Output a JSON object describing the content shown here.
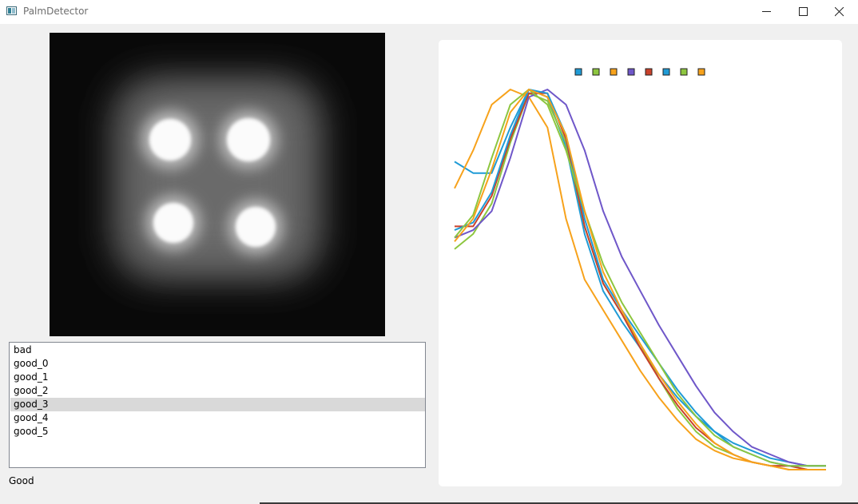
{
  "window": {
    "title": "PalmDetector"
  },
  "list": {
    "items": [
      "bad",
      "good_0",
      "good_1",
      "good_2",
      "good_3",
      "good_4",
      "good_5"
    ],
    "selected_index": 4
  },
  "status": {
    "text": "Good"
  },
  "chart_data": {
    "type": "line",
    "legend_position": "top",
    "grid": false,
    "axes_visible": false,
    "ylim": [
      0,
      1
    ],
    "x": [
      0,
      0.05,
      0.1,
      0.15,
      0.2,
      0.25,
      0.3,
      0.35,
      0.4,
      0.45,
      0.5,
      0.55,
      0.6,
      0.65,
      0.7,
      0.75,
      0.8,
      0.85,
      0.9,
      0.95,
      1
    ],
    "series": [
      {
        "color": "#1f9bd6",
        "values": [
          0.81,
          0.78,
          0.78,
          0.9,
          1.0,
          0.98,
          0.85,
          0.62,
          0.47,
          0.39,
          0.32,
          0.25,
          0.19,
          0.14,
          0.1,
          0.07,
          0.05,
          0.03,
          0.02,
          0.01,
          0.01
        ]
      },
      {
        "color": "#8dc63f",
        "values": [
          0.58,
          0.62,
          0.7,
          0.86,
          0.99,
          0.97,
          0.86,
          0.64,
          0.49,
          0.41,
          0.33,
          0.24,
          0.16,
          0.1,
          0.06,
          0.04,
          0.02,
          0.01,
          0.01,
          0.0,
          0.0
        ]
      },
      {
        "color": "#f7a21b",
        "values": [
          0.74,
          0.84,
          0.96,
          1.0,
          0.98,
          0.9,
          0.66,
          0.5,
          0.42,
          0.34,
          0.26,
          0.19,
          0.13,
          0.08,
          0.05,
          0.03,
          0.02,
          0.01,
          0.0,
          0.0,
          0.0
        ]
      },
      {
        "color": "#6f57c9",
        "values": [
          0.61,
          0.63,
          0.68,
          0.82,
          0.98,
          1.0,
          0.96,
          0.84,
          0.68,
          0.56,
          0.47,
          0.38,
          0.3,
          0.22,
          0.15,
          0.1,
          0.06,
          0.04,
          0.02,
          0.01,
          0.01
        ]
      },
      {
        "color": "#c9412b",
        "values": [
          0.64,
          0.64,
          0.72,
          0.87,
          0.99,
          0.99,
          0.87,
          0.64,
          0.49,
          0.41,
          0.32,
          0.24,
          0.17,
          0.11,
          0.07,
          0.04,
          0.02,
          0.01,
          0.01,
          0.0,
          0.0
        ]
      },
      {
        "color": "#1f9bd6",
        "values": [
          0.63,
          0.65,
          0.73,
          0.88,
          1.0,
          0.99,
          0.88,
          0.66,
          0.5,
          0.42,
          0.35,
          0.28,
          0.21,
          0.15,
          0.1,
          0.06,
          0.04,
          0.02,
          0.01,
          0.01,
          0.01
        ]
      },
      {
        "color": "#8dc63f",
        "values": [
          0.61,
          0.67,
          0.82,
          0.96,
          1.0,
          0.96,
          0.84,
          0.68,
          0.54,
          0.44,
          0.36,
          0.28,
          0.2,
          0.14,
          0.09,
          0.06,
          0.04,
          0.02,
          0.01,
          0.01,
          0.01
        ]
      },
      {
        "color": "#f7a21b",
        "values": [
          0.6,
          0.66,
          0.79,
          0.94,
          1.0,
          0.98,
          0.88,
          0.68,
          0.52,
          0.42,
          0.33,
          0.25,
          0.18,
          0.12,
          0.07,
          0.04,
          0.02,
          0.01,
          0.0,
          0.0,
          0.0
        ]
      }
    ]
  }
}
